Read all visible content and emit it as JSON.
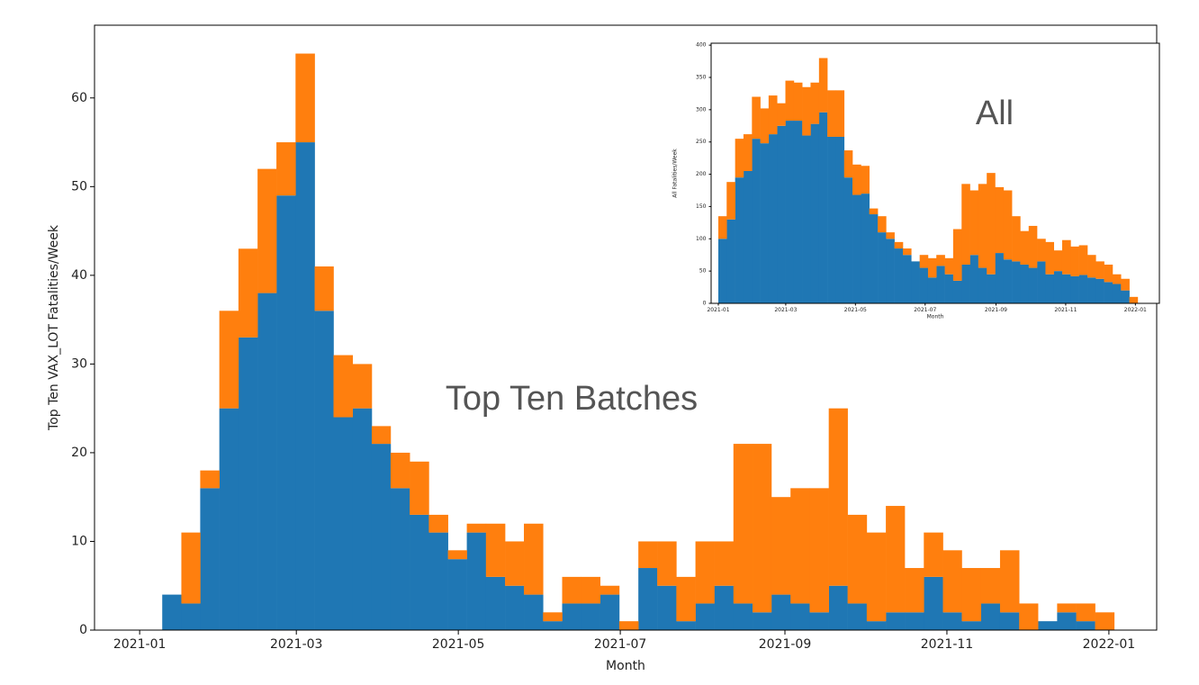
{
  "chart_data": [
    {
      "type": "histogram",
      "annotation": "Top Ten Batches",
      "xlabel": "Month",
      "ylabel": "Top Ten VAX_LOT Fatalities/Week",
      "bins": [
        8.5,
        15.7,
        22.8,
        30.0,
        37.2,
        44.4,
        51.5,
        58.7,
        65.9,
        73.0,
        80.2,
        87.4,
        94.5,
        101.7,
        108.9,
        116.1,
        123.2,
        130.4,
        137.6,
        144.7,
        151.9,
        159.1,
        166.2,
        173.4,
        180.6,
        187.8,
        194.9,
        202.1,
        209.3,
        216.4,
        223.6,
        230.8,
        237.9,
        245.1,
        252.3,
        259.5,
        266.6,
        273.8,
        281.0,
        288.1,
        295.3,
        302.5,
        309.6,
        316.8,
        324.0,
        331.2,
        338.3,
        345.5,
        352.7,
        359.8,
        367.0
      ],
      "series": [
        {
          "color": "#1f77b4",
          "values": [
            4,
            3,
            16,
            25,
            33,
            38,
            49,
            55,
            36,
            24,
            25,
            21,
            16,
            13,
            11,
            8,
            11,
            6,
            5,
            4,
            1,
            3,
            3,
            4,
            0,
            7,
            5,
            1,
            3,
            5,
            3,
            2,
            4,
            3,
            2,
            5,
            3,
            1,
            2,
            2,
            6,
            2,
            1,
            3,
            2,
            0,
            1,
            2,
            1,
            0
          ]
        },
        {
          "color": "#ff7f0e",
          "values": [
            0,
            8,
            2,
            11,
            10,
            14,
            6,
            10,
            5,
            7,
            5,
            2,
            4,
            6,
            2,
            1,
            1,
            6,
            5,
            8,
            1,
            3,
            3,
            1,
            1,
            3,
            5,
            5,
            7,
            5,
            18,
            19,
            11,
            13,
            14,
            20,
            10,
            10,
            12,
            5,
            5,
            7,
            6,
            4,
            7,
            3,
            0,
            1,
            2,
            2
          ]
        }
      ],
      "xlim": [
        -17,
        383
      ],
      "ylim": [
        0,
        68.2
      ],
      "xticks": [
        {
          "value": 0,
          "label": "2021-01"
        },
        {
          "value": 59,
          "label": "2021-03"
        },
        {
          "value": 120,
          "label": "2021-05"
        },
        {
          "value": 181,
          "label": "2021-07"
        },
        {
          "value": 243,
          "label": "2021-09"
        },
        {
          "value": 304,
          "label": "2021-11"
        },
        {
          "value": 365,
          "label": "2022-01"
        }
      ],
      "yticks": [
        0,
        10,
        20,
        30,
        40,
        50,
        60
      ]
    },
    {
      "type": "histogram",
      "annotation": "All",
      "xlabel": "Month",
      "ylabel": "All Fatalities/Week",
      "bins": [
        0,
        7.3,
        14.7,
        22.0,
        29.4,
        36.7,
        44.0,
        51.4,
        58.7,
        66.1,
        73.4,
        80.7,
        88.1,
        95.4,
        102.8,
        110.1,
        117.4,
        124.8,
        132.1,
        139.5,
        146.8,
        154.1,
        161.5,
        168.8,
        176.2,
        183.5,
        190.8,
        198.2,
        205.5,
        212.9,
        220.2,
        227.5,
        234.9,
        242.2,
        249.6,
        256.9,
        264.2,
        271.6,
        278.9,
        286.3,
        293.6,
        300.9,
        308.3,
        315.6,
        323.0,
        330.3,
        337.6,
        345.0,
        352.3,
        359.7,
        367.0
      ],
      "series": [
        {
          "color": "#1f77b4",
          "values": [
            100,
            130,
            195,
            205,
            255,
            248,
            262,
            275,
            283,
            283,
            260,
            278,
            296,
            258,
            258,
            195,
            168,
            170,
            138,
            110,
            100,
            85,
            75,
            65,
            55,
            40,
            58,
            45,
            35,
            60,
            75,
            55,
            45,
            78,
            68,
            65,
            60,
            55,
            65,
            45,
            50,
            45,
            42,
            44,
            40,
            38,
            33,
            30,
            20,
            0
          ]
        },
        {
          "color": "#ff7f0e",
          "values": [
            35,
            58,
            60,
            57,
            65,
            54,
            60,
            35,
            62,
            59,
            75,
            64,
            84,
            72,
            72,
            42,
            47,
            43,
            9,
            25,
            10,
            10,
            10,
            0,
            20,
            30,
            17,
            25,
            80,
            125,
            100,
            130,
            157,
            102,
            107,
            70,
            52,
            65,
            35,
            50,
            32,
            53,
            46,
            46,
            35,
            27,
            27,
            15,
            18,
            10
          ]
        }
      ],
      "xlim": [
        -6.3,
        386
      ],
      "ylim": [
        0,
        403
      ],
      "xticks": [
        {
          "value": 0,
          "label": "2021-01"
        },
        {
          "value": 59,
          "label": "2021-03"
        },
        {
          "value": 120,
          "label": "2021-05"
        },
        {
          "value": 181,
          "label": "2021-07"
        },
        {
          "value": 243,
          "label": "2021-09"
        },
        {
          "value": 304,
          "label": "2021-11"
        },
        {
          "value": 365,
          "label": "2022-01"
        }
      ],
      "yticks": [
        0,
        50,
        100,
        150,
        200,
        250,
        300,
        350,
        400
      ]
    }
  ]
}
